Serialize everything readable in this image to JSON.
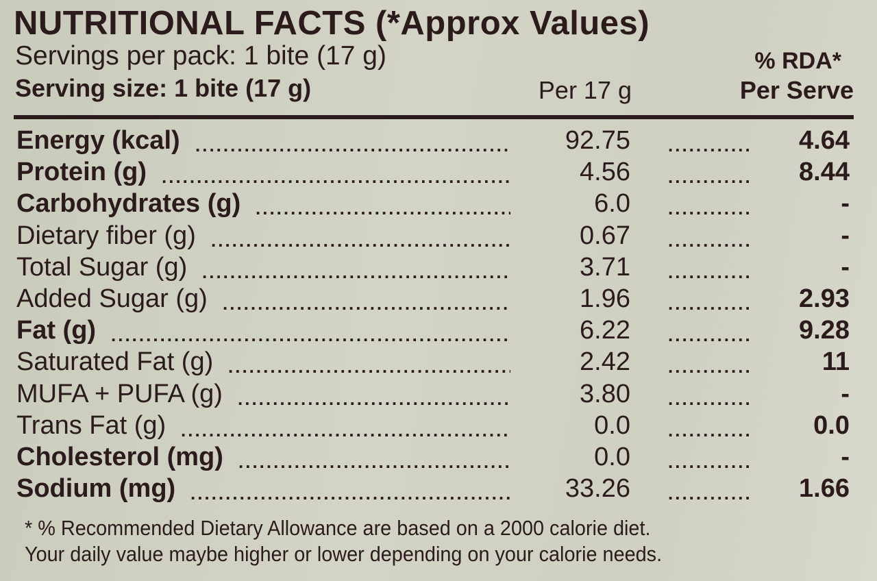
{
  "label": {
    "title": "NUTRITIONAL FACTS (*Approx Values)",
    "servings_per_pack": "Servings per pack: 1 bite (17 g)",
    "rda_header": "% RDA*",
    "serving_size": "Serving size: 1 bite (17 g)",
    "per_header": "Per 17 g",
    "per_serve_header": "Per Serve",
    "rows": [
      {
        "name": "Energy (kcal)",
        "per": "92.75",
        "rda": "4.64",
        "bold": true
      },
      {
        "name": "Protein (g)",
        "per": "4.56",
        "rda": "8.44",
        "bold": true
      },
      {
        "name": "Carbohydrates (g)",
        "per": "6.0",
        "rda": "-",
        "bold": true
      },
      {
        "name": "Dietary fiber (g)",
        "per": "0.67",
        "rda": "-",
        "bold": false
      },
      {
        "name": "Total Sugar (g)",
        "per": "3.71",
        "rda": "-",
        "bold": false
      },
      {
        "name": "Added Sugar (g)",
        "per": "1.96",
        "rda": "2.93",
        "bold": false
      },
      {
        "name": "Fat (g)",
        "per": "6.22",
        "rda": "9.28",
        "bold": true
      },
      {
        "name": "Saturated Fat (g)",
        "per": "2.42",
        "rda": "11",
        "bold": false
      },
      {
        "name": "MUFA + PUFA (g)",
        "per": "3.80",
        "rda": "-",
        "bold": false
      },
      {
        "name": "Trans Fat (g)",
        "per": "0.0",
        "rda": "0.0",
        "bold": false
      },
      {
        "name": "Cholesterol (mg)",
        "per": "0.0",
        "rda": "-",
        "bold": true
      },
      {
        "name": "Sodium (mg)",
        "per": "33.26",
        "rda": "1.66",
        "bold": true
      }
    ],
    "footnote_line1": "* % Recommended Dietary Allowance are based on a 2000 calorie diet.",
    "footnote_line2": "Your daily value maybe higher or lower depending on your calorie needs."
  }
}
